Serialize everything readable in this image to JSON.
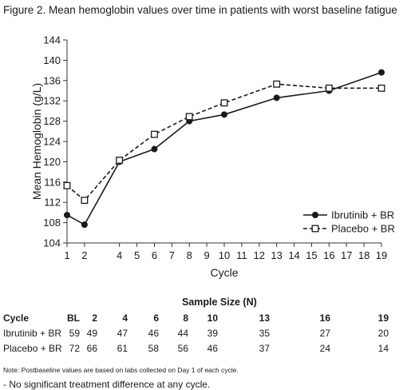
{
  "chart_data": {
    "type": "line",
    "title": "Figure 2. Mean hemoglobin values over time in patients with worst baseline fatigue",
    "xlabel": "Cycle",
    "ylabel": "Mean Hemoglobin (g/L)",
    "xlim": [
      1,
      19
    ],
    "ylim": [
      104,
      144
    ],
    "xticks": [
      1,
      2,
      4,
      5,
      6,
      7,
      8,
      9,
      10,
      11,
      12,
      13,
      14,
      15,
      16,
      17,
      18,
      19
    ],
    "yticks": [
      104,
      108,
      112,
      116,
      120,
      124,
      128,
      132,
      136,
      140,
      144
    ],
    "grid": false,
    "legend_position": "bottom-right",
    "series": [
      {
        "name": "Ibrutinib + BR",
        "style": "solid",
        "marker": "filled-circle",
        "x": [
          1,
          2,
          4,
          6,
          8,
          10,
          13,
          16,
          19
        ],
        "y": [
          109.5,
          107.6,
          120.0,
          122.5,
          128.0,
          129.3,
          132.6,
          134.0,
          137.6
        ]
      },
      {
        "name": "Placebo + BR",
        "style": "dashed",
        "marker": "open-square",
        "x": [
          1,
          2,
          4,
          6,
          8,
          10,
          13,
          16,
          19
        ],
        "y": [
          115.3,
          112.4,
          120.3,
          125.4,
          128.9,
          131.6,
          135.3,
          134.5,
          134.5
        ]
      }
    ]
  },
  "sample_size": {
    "title": "Sample Size (N)",
    "header": [
      "Cycle",
      "BL",
      "2",
      "4",
      "6",
      "8",
      "10",
      "13",
      "16",
      "19"
    ],
    "rows": [
      {
        "label": "Ibrutinib + BR",
        "values": [
          "59",
          "49",
          "47",
          "46",
          "44",
          "39",
          "35",
          "27",
          "20"
        ]
      },
      {
        "label": "Placebo + BR",
        "values": [
          "72",
          "66",
          "61",
          "58",
          "56",
          "46",
          "37",
          "24",
          "14"
        ]
      }
    ]
  },
  "note": "Note: Postbaseline values are based on labs collected on Day 1 of each cycle.",
  "footnote": "-   No significant treatment difference at any cycle."
}
